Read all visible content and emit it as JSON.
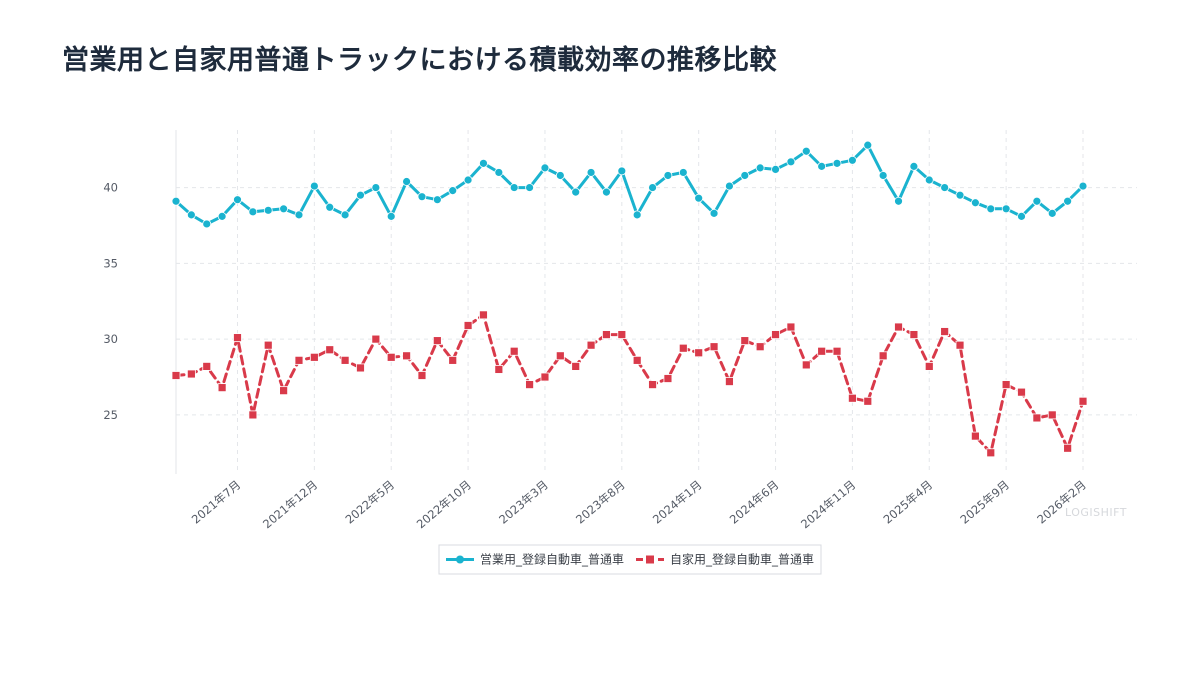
{
  "chart_data": {
    "type": "line",
    "title": "営業用と自家用普通トラックにおける積載効率の推移比較",
    "xlabel": "",
    "ylabel": "",
    "x_ticks": [
      "2021年7月",
      "2021年12月",
      "2022年5月",
      "2022年10月",
      "2023年3月",
      "2023年8月",
      "2024年1月",
      "2024年6月",
      "2024年11月",
      "2025年4月",
      "2025年9月",
      "2026年2月"
    ],
    "x_range": [
      "2021-03",
      "2026-02"
    ],
    "y_ticks": [
      25,
      30,
      35,
      40
    ],
    "ylim": [
      21.1,
      43.8
    ],
    "grid": true,
    "legend_position": "bottom",
    "watermark": "LOGISHIFT",
    "series": [
      {
        "name": "営業用_登録自動車_普通車",
        "color": "#1ab3cf",
        "style": "solid",
        "marker": "circle",
        "values": [
          39.1,
          38.2,
          37.6,
          38.1,
          39.2,
          38.4,
          38.5,
          38.6,
          38.2,
          40.1,
          38.7,
          38.2,
          39.5,
          40.0,
          38.1,
          40.4,
          39.4,
          39.2,
          39.8,
          40.5,
          41.6,
          41.0,
          40.0,
          40.0,
          41.3,
          40.8,
          39.7,
          41.0,
          39.7,
          41.1,
          38.2,
          40.0,
          40.8,
          41.0,
          39.3,
          38.3,
          40.1,
          40.8,
          41.3,
          41.2,
          41.7,
          42.4,
          41.4,
          41.6,
          41.8,
          42.8,
          40.8,
          39.1,
          41.4,
          40.5,
          40.0,
          39.5,
          39.0,
          38.6,
          38.6,
          38.1,
          39.1,
          38.3,
          39.1,
          40.1
        ]
      },
      {
        "name": "自家用_登録自動車_普通車",
        "color": "#d93a4a",
        "style": "dashed",
        "marker": "square",
        "values": [
          27.6,
          27.7,
          28.2,
          26.8,
          30.1,
          25.0,
          29.6,
          26.6,
          28.6,
          28.8,
          29.3,
          28.6,
          28.1,
          30.0,
          28.8,
          28.9,
          27.6,
          29.9,
          28.6,
          30.9,
          31.6,
          28.0,
          29.2,
          27.0,
          27.5,
          28.9,
          28.2,
          29.6,
          30.3,
          30.3,
          28.6,
          27.0,
          27.4,
          29.4,
          29.1,
          29.5,
          27.2,
          29.9,
          29.5,
          30.3,
          30.8,
          28.3,
          29.2,
          29.2,
          26.1,
          25.9,
          28.9,
          30.8,
          30.3,
          28.2,
          30.5,
          29.6,
          23.6,
          22.5,
          27.0,
          26.5,
          24.8,
          25.0,
          22.8,
          25.9
        ]
      }
    ]
  }
}
